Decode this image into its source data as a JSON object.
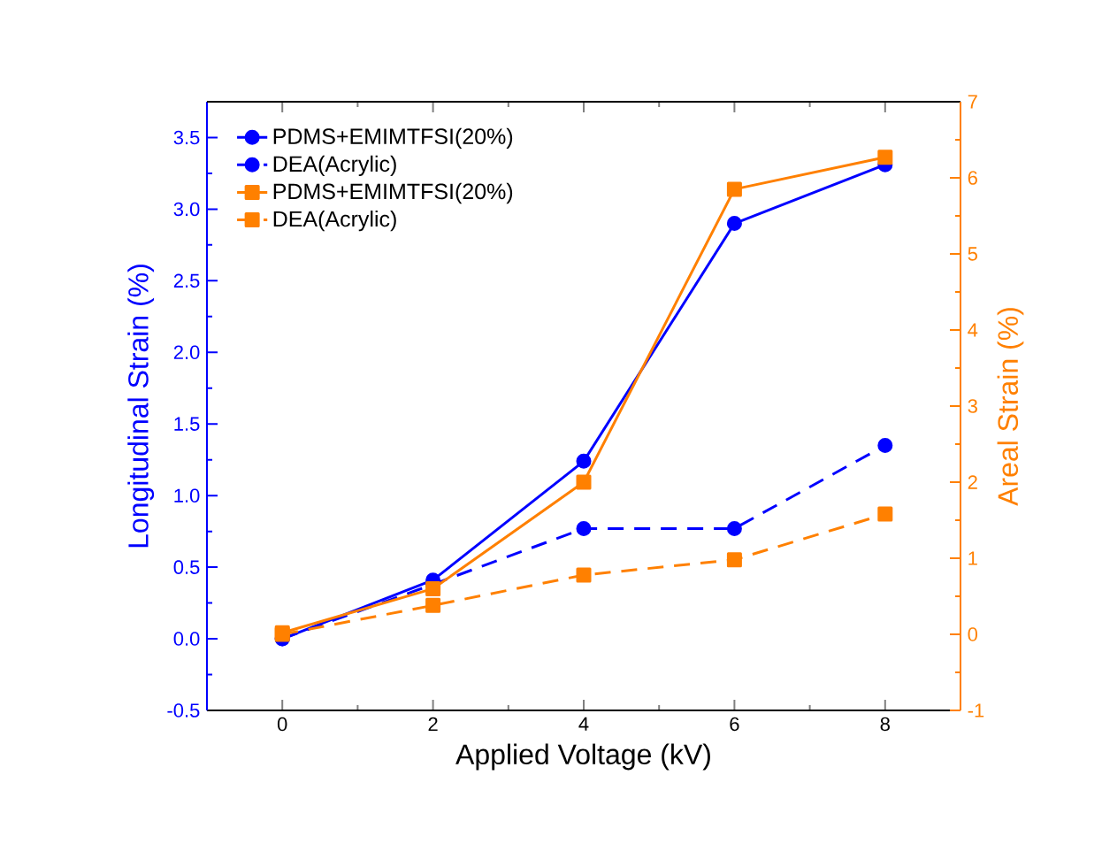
{
  "chart_data": {
    "type": "line",
    "xlabel": "Applied Voltage (kV)",
    "ylabel": "Longitudinal Strain (%)",
    "y2label": "Areal Strain (%)",
    "x": [
      0,
      2,
      4,
      6,
      8
    ],
    "series": [
      {
        "name": "PDMS+EMIMTFSI(20%)",
        "color": "#0000ff",
        "marker": "circle",
        "line_style": "solid",
        "values": [
          0,
          0.41,
          1.24,
          2.9,
          3.31
        ]
      },
      {
        "name": "DEA(Acrylic)",
        "color": "#0000ff",
        "marker": "circle",
        "line_style": "dashed",
        "values": [
          0,
          0.38,
          0.77,
          0.77,
          1.35
        ]
      },
      {
        "name": "PDMS+EMIMTFSI(20%)",
        "color": "#ff8000",
        "marker": "square",
        "line_style": "solid",
        "axis": "y2",
        "values": [
          0.02,
          0.6,
          2.0,
          5.85,
          6.27
        ]
      },
      {
        "name": "DEA(Acrylic)",
        "color": "#ff8000",
        "marker": "square",
        "line_style": "dashed",
        "axis": "y2",
        "values": [
          0,
          0.38,
          0.78,
          0.98,
          1.58
        ]
      }
    ],
    "xlim": [
      -1,
      9
    ],
    "xticks": [
      0,
      2,
      4,
      6,
      8
    ],
    "ylim": [
      -0.5,
      3.75
    ],
    "yticks": [
      {
        "value": -0.5,
        "label": "-0.5"
      },
      {
        "value": 0,
        "label": "0.0"
      },
      {
        "value": 0.5,
        "label": "0.5"
      },
      {
        "value": 1,
        "label": "1.0"
      },
      {
        "value": 1.5,
        "label": "1.5"
      },
      {
        "value": 2,
        "label": "2.0"
      },
      {
        "value": 2.5,
        "label": "2.5"
      },
      {
        "value": 3,
        "label": "3.0"
      },
      {
        "value": 3.5,
        "label": "3.5"
      }
    ],
    "y2lim": [
      -1,
      7
    ],
    "y2ticks": [
      -1,
      0,
      1,
      2,
      3,
      4,
      5,
      6,
      7
    ],
    "grid": false,
    "legend": "top left"
  }
}
